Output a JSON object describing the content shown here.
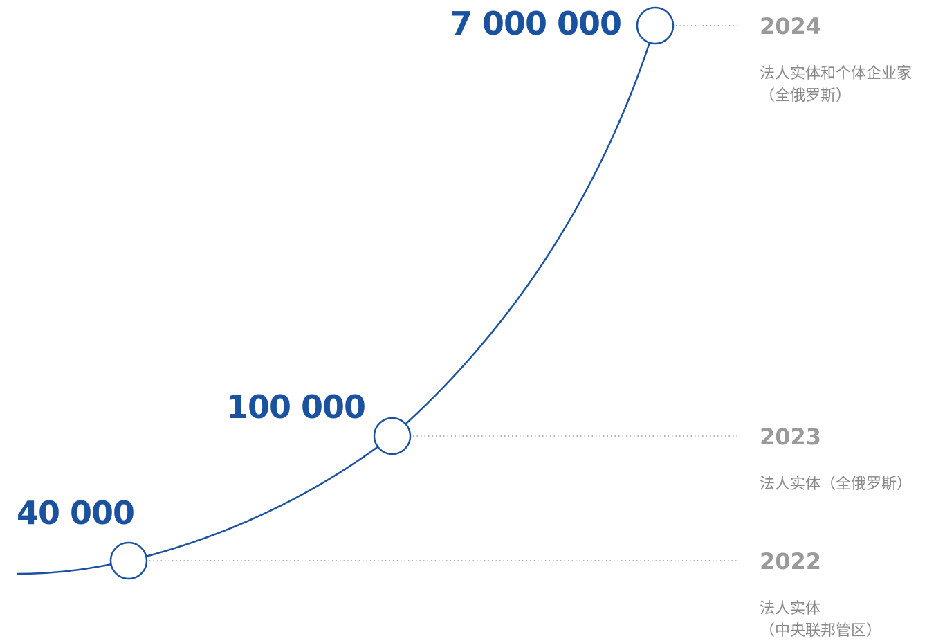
{
  "colors": {
    "line": "#1a52a0",
    "value_text": "#1a52a0",
    "year_text": "#9a9a9a",
    "desc_text": "#888888",
    "leader": "#9a9a9a",
    "marker_fill": "#ffffff"
  },
  "chart_data": {
    "type": "line",
    "title": "",
    "xlabel": "",
    "ylabel": "",
    "grid": false,
    "legend": "none",
    "points": [
      {
        "year": "2022",
        "value": 40000,
        "value_label": "40 000",
        "description_lines": [
          "法人实体",
          "（中央联邦管区）"
        ]
      },
      {
        "year": "2023",
        "value": 100000,
        "value_label": "100 000",
        "description_lines": [
          "法人实体（全俄罗斯）"
        ]
      },
      {
        "year": "2024",
        "value": 7000000,
        "value_label": "7 000 000",
        "description_lines": [
          "法人实体和个体企业家",
          "（全俄罗斯）"
        ]
      }
    ]
  }
}
